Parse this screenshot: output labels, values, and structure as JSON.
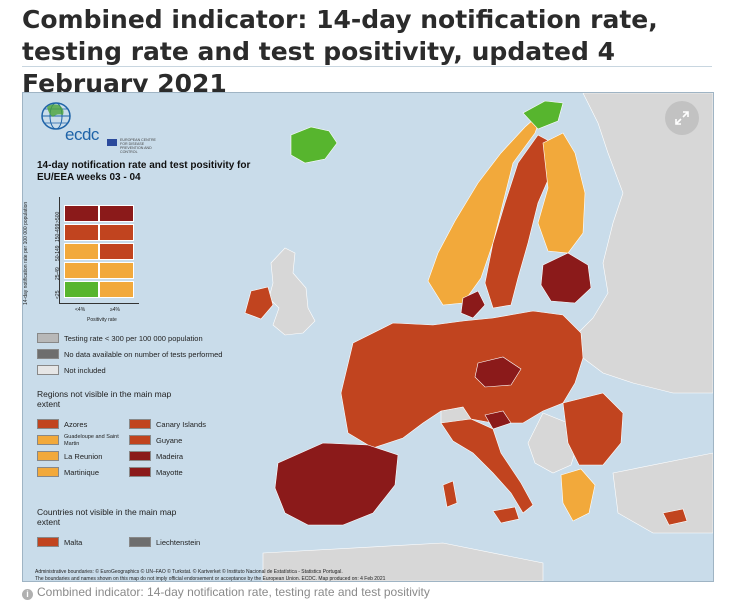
{
  "page": {
    "title": "Combined indicator: 14-day notification rate, testing rate and test positivity, updated 4 February 2021"
  },
  "logo": {
    "name": "ecdc",
    "subtext": "EUROPEAN CENTRE FOR DISEASE PREVENTION AND CONTROL"
  },
  "legend": {
    "heading": "14-day notification rate and test positivity for EU/EEA weeks 03 - 04",
    "y_axis_label": "14-day notification rate per 100 000 population",
    "y_ticks": [
      ">500",
      "150-499",
      "50-149",
      "25-49",
      "<25"
    ],
    "x_axis_label": "Positivity rate",
    "x_ticks": [
      "<4%",
      "≥4%"
    ],
    "matrix_colors": [
      [
        "#8b1a1a",
        "#8b1a1a"
      ],
      [
        "#c1441f",
        "#c1441f"
      ],
      [
        "#f2a93b",
        "#c1441f"
      ],
      [
        "#f2a93b",
        "#f2a93b"
      ],
      [
        "#57b52e",
        "#f2a93b"
      ]
    ],
    "status_items": [
      {
        "label": "Testing rate < 300 per 100 000 population",
        "color": "#b8b8b8"
      },
      {
        "label": "No data available on number of tests performed",
        "color": "#6e6e6e"
      },
      {
        "label": "Not included",
        "color": "#e6e6e6"
      }
    ],
    "regions_heading": "Regions not visible in the main map extent",
    "regions": [
      {
        "label": "Azores",
        "color": "#c1441f"
      },
      {
        "label": "Canary Islands",
        "color": "#c1441f"
      },
      {
        "label": "Guadeloupe and Saint Martin",
        "color": "#f2a93b"
      },
      {
        "label": "Guyane",
        "color": "#c1441f"
      },
      {
        "label": "La Reunion",
        "color": "#f2a93b"
      },
      {
        "label": "Madeira",
        "color": "#8b1a1a"
      },
      {
        "label": "Martinique",
        "color": "#f2a93b"
      },
      {
        "label": "Mayotte",
        "color": "#8b1a1a"
      }
    ],
    "countries_heading": "Countries not visible in the main map extent",
    "countries": [
      {
        "label": "Malta",
        "color": "#c1441f"
      },
      {
        "label": "Liechtenstein",
        "color": "#6e6e6e"
      }
    ]
  },
  "map_colors": {
    "sea": "#c9dcea",
    "not_included": "#d7d7d7",
    "green": "#57b52e",
    "orange": "#f2a93b",
    "red": "#c1441f",
    "dark_red": "#8b1a1a",
    "grey": "#6e6e6e"
  },
  "footer": {
    "line1": "Administrative boundaries: © EuroGeographics © UN–FAO © Turkstat. © Kartverket © Instituto Nacional de Estatística - Statistics Portugal.",
    "line2": "The boundaries and names shown on this map do not imply official endorsement or acceptance by the European Union. ECDC. Map produced on: 4 Feb 2021"
  },
  "caption": "Combined indicator: 14-day notification rate, testing rate and test positivity",
  "icons": {
    "expand": "expand-arrows-icon",
    "info": "info-icon"
  }
}
